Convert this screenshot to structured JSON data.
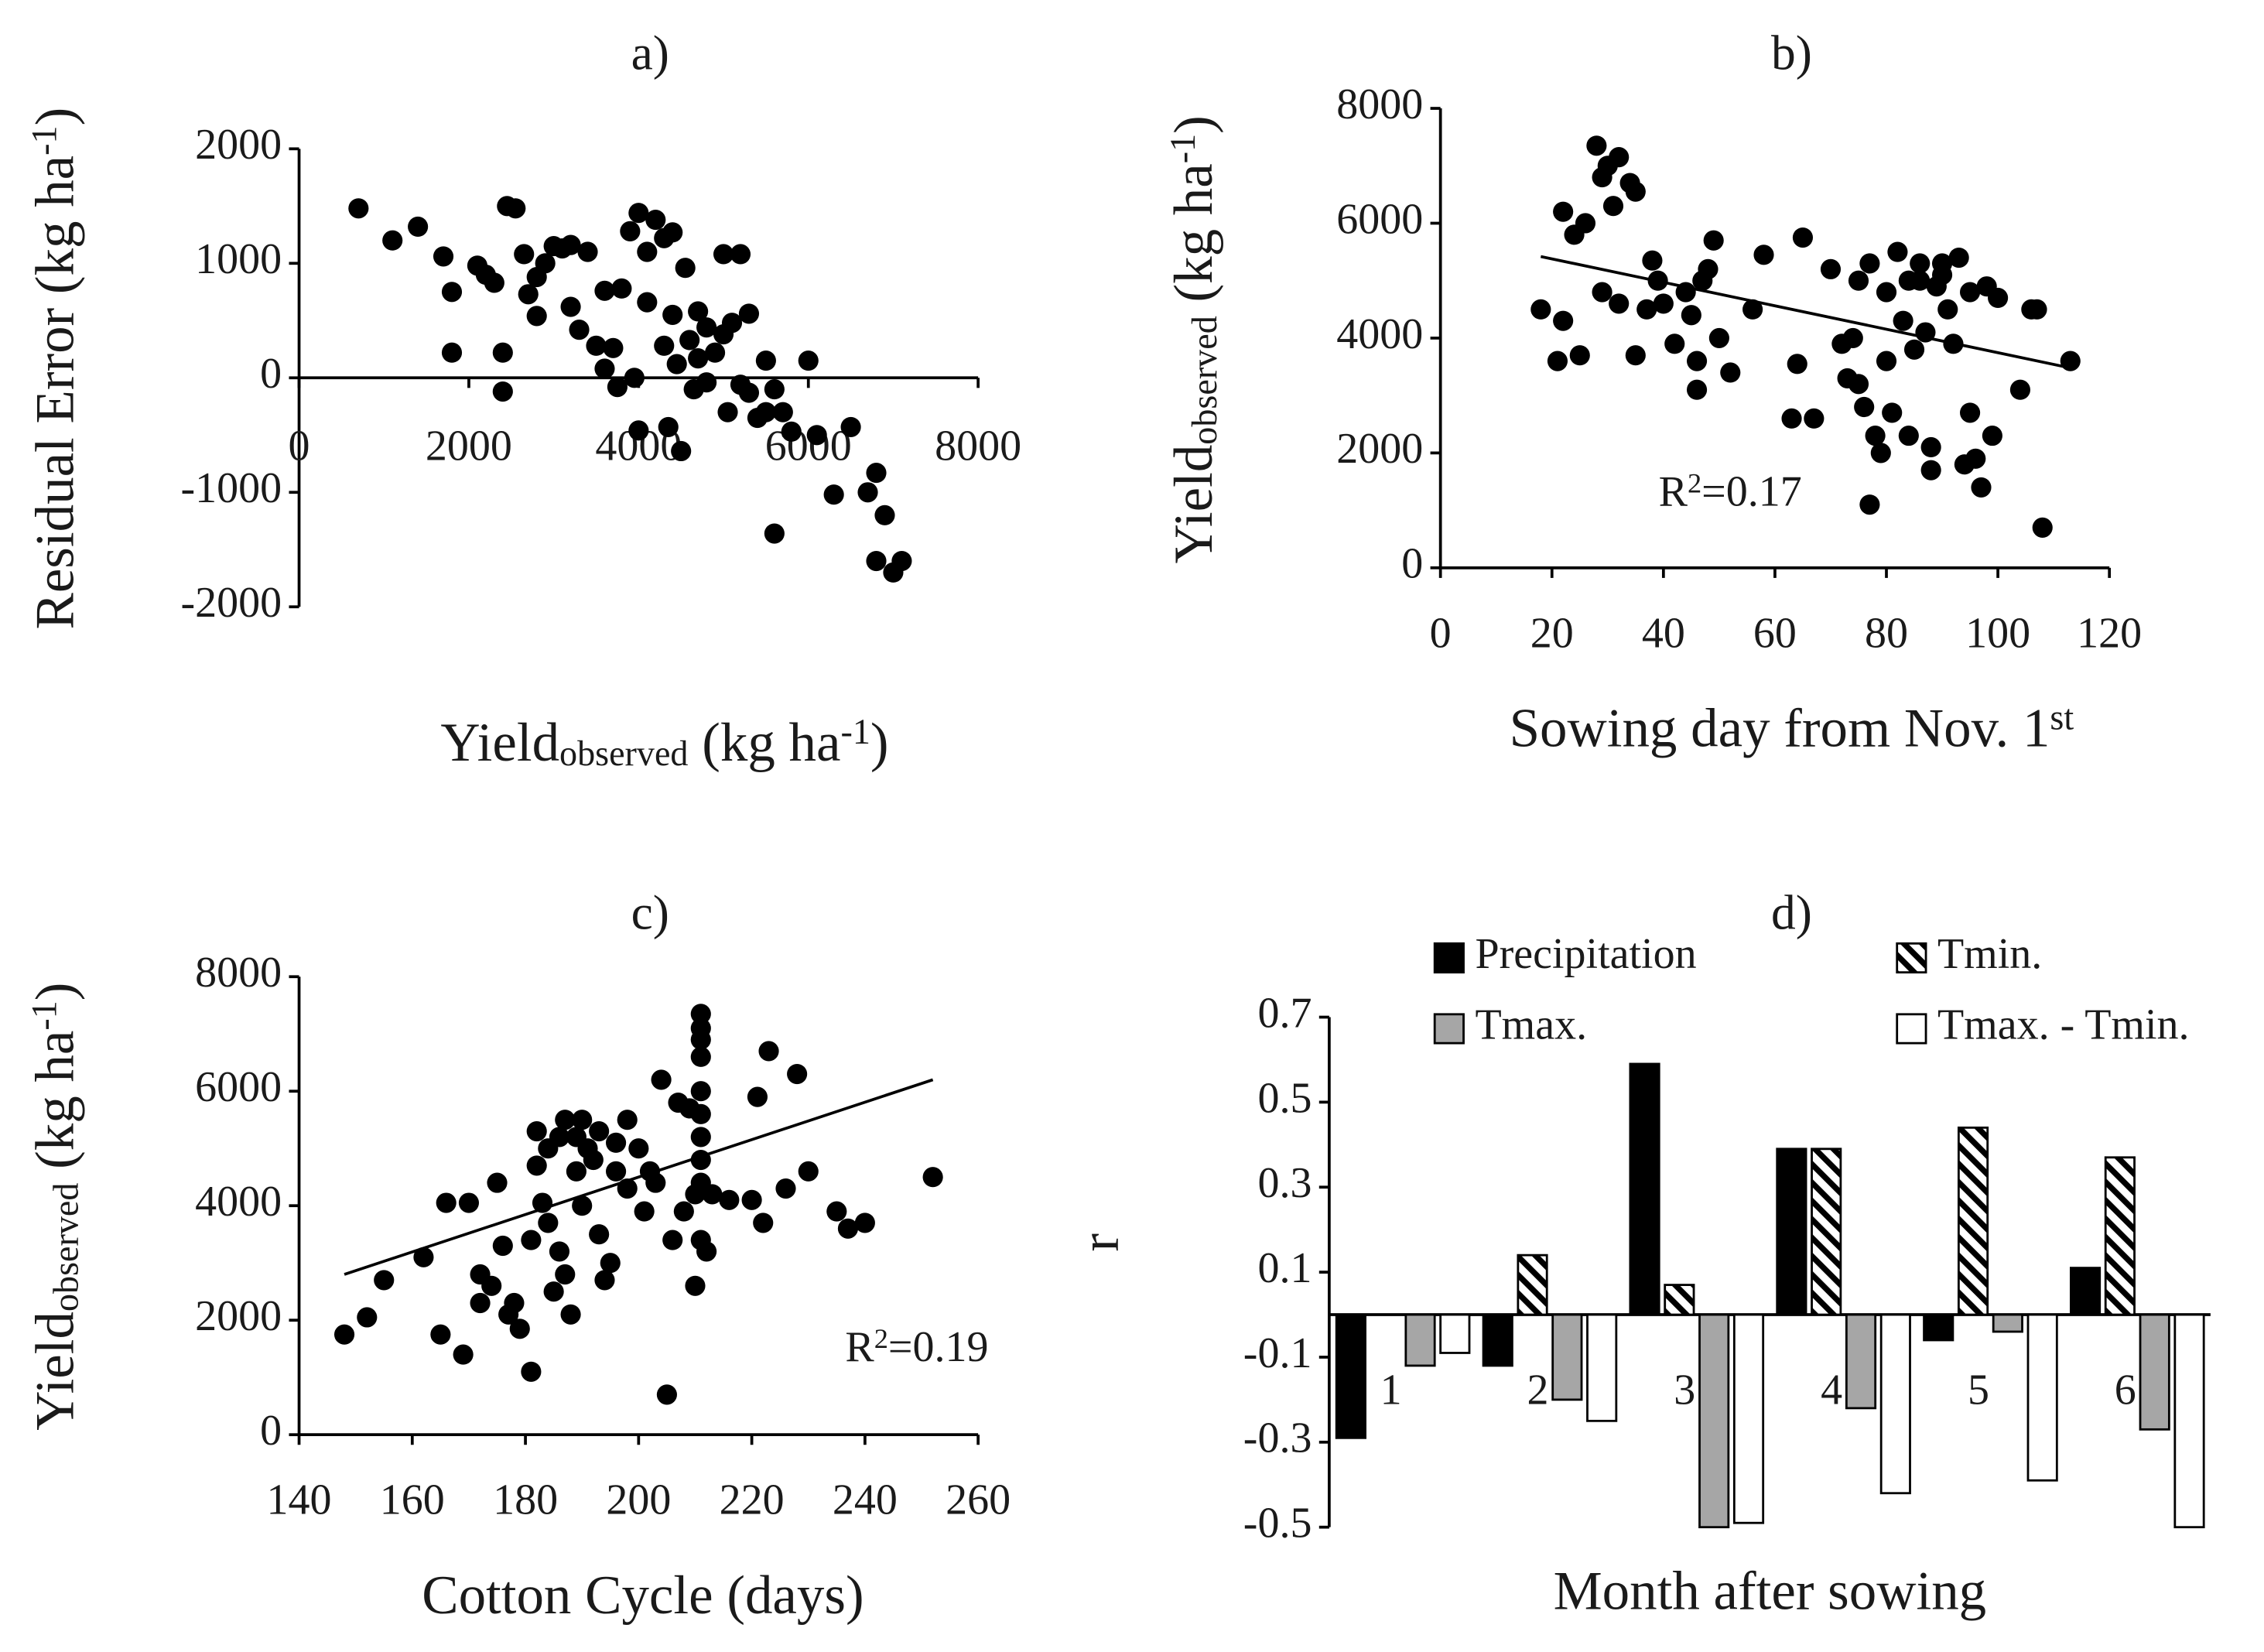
{
  "chart_data": [
    {
      "type": "scatter",
      "title": "a)",
      "ylabel": [
        {
          "text": "Residual Error (kg ha"
        },
        {
          "sup": "-1"
        },
        {
          "text": ")"
        }
      ],
      "xlabel": [
        {
          "text": "Yield"
        },
        {
          "sub": "observed"
        },
        {
          "text": " (kg ha"
        },
        {
          "sup": "-1"
        },
        {
          "text": ")"
        }
      ],
      "xlim": [
        0,
        8000
      ],
      "xticks": [
        0,
        2000,
        4000,
        6000,
        8000
      ],
      "ylim": [
        -2000,
        2000
      ],
      "yticks": [
        -2000,
        -1000,
        0,
        1000,
        2000
      ],
      "color": "#000000",
      "x": [
        700,
        1100,
        1400,
        1700,
        1800,
        1800,
        2100,
        2200,
        2300,
        2400,
        2400,
        2450,
        2550,
        2650,
        2700,
        2800,
        2800,
        2900,
        3000,
        3100,
        3200,
        3200,
        3300,
        3400,
        3500,
        3600,
        3700,
        3750,
        3800,
        3900,
        3950,
        4000,
        4000,
        4100,
        4100,
        4200,
        4300,
        4300,
        4350,
        4400,
        4450,
        4500,
        4550,
        4600,
        4650,
        4700,
        4800,
        4800,
        4900,
        5000,
        5000,
        5100,
        5200,
        5200,
        5300,
        5300,
        5400,
        5500,
        5500,
        5600,
        5600,
        5700,
        5800,
        6100,
        6000,
        6500,
        6300,
        6700,
        6800,
        6900,
        6800,
        7000,
        7100,
        4400,
        3600,
        5050,
        4700
      ],
      "values": [
        1480,
        1200,
        1320,
        1060,
        750,
        220,
        980,
        900,
        830,
        -120,
        220,
        1500,
        1480,
        1080,
        730,
        540,
        880,
        1000,
        1150,
        1130,
        1160,
        620,
        420,
        1100,
        280,
        760,
        260,
        -80,
        780,
        1280,
        0,
        1440,
        -460,
        1100,
        660,
        1380,
        1220,
        280,
        -430,
        1270,
        120,
        -640,
        960,
        330,
        -100,
        580,
        440,
        -40,
        220,
        1080,
        380,
        480,
        1080,
        -60,
        -130,
        560,
        -350,
        -300,
        150,
        -1360,
        -100,
        -300,
        -470,
        -500,
        150,
        -430,
        -1020,
        -1000,
        -830,
        -1200,
        -1600,
        -1700,
        -1600,
        550,
        80,
        -300,
        170
      ]
    },
    {
      "type": "scatter",
      "title": "b)",
      "ylabel": [
        {
          "text": "Yield"
        },
        {
          "sub": "observed"
        },
        {
          "text": " (kg ha"
        },
        {
          "sup": "-1"
        },
        {
          "text": ")"
        }
      ],
      "xlabel": [
        {
          "text": "Sowing day from Nov. 1"
        },
        {
          "sup": "st"
        }
      ],
      "xlim": [
        0,
        120
      ],
      "xticks": [
        0,
        20,
        40,
        60,
        80,
        100,
        120
      ],
      "ylim": [
        0,
        8000
      ],
      "yticks": [
        0,
        2000,
        4000,
        6000,
        8000
      ],
      "color": "#000000",
      "annotation": [
        {
          "text": "R"
        },
        {
          "sup": "2"
        },
        {
          "text": "=0.17"
        }
      ],
      "trendline": {
        "x": [
          18,
          113
        ],
        "y": [
          5420,
          3480
        ]
      },
      "x": [
        18,
        21,
        22,
        22,
        24,
        25,
        26,
        28,
        29,
        29,
        30,
        31,
        32,
        32,
        34,
        35,
        35,
        37,
        38,
        39,
        40,
        42,
        44,
        45,
        46,
        46,
        47,
        48,
        49,
        50,
        52,
        56,
        58,
        63,
        64,
        65,
        67,
        70,
        73,
        74,
        75,
        75,
        76,
        77,
        77,
        78,
        79,
        80,
        80,
        81,
        82,
        83,
        84,
        84,
        85,
        86,
        87,
        88,
        88,
        89,
        90,
        91,
        92,
        93,
        94,
        95,
        95,
        96,
        97,
        98,
        99,
        100,
        104,
        106,
        107,
        108,
        113,
        72,
        86,
        90
      ],
      "values": [
        4500,
        3600,
        6200,
        4300,
        5800,
        3700,
        6000,
        7350,
        6800,
        4800,
        7000,
        6300,
        7150,
        4600,
        6700,
        3700,
        6550,
        4500,
        5350,
        5000,
        4600,
        3900,
        4800,
        4400,
        3600,
        3100,
        5000,
        5200,
        5700,
        4000,
        3400,
        4500,
        5450,
        2600,
        3550,
        5750,
        2600,
        5200,
        3300,
        4000,
        3200,
        5000,
        2800,
        5300,
        1100,
        2300,
        2000,
        4800,
        3600,
        2700,
        5500,
        4300,
        5000,
        2300,
        3800,
        5300,
        4100,
        1700,
        2100,
        4900,
        5300,
        4500,
        3900,
        5400,
        1800,
        2700,
        4800,
        1900,
        1400,
        4900,
        2300,
        4700,
        3100,
        4500,
        4500,
        700,
        3600,
        3900,
        5000,
        5100
      ]
    },
    {
      "type": "scatter",
      "title": "c)",
      "ylabel": [
        {
          "text": "Yield"
        },
        {
          "sub": "observed"
        },
        {
          "text": " (kg ha"
        },
        {
          "sup": "-1"
        },
        {
          "text": ")"
        }
      ],
      "xlabel": [
        {
          "text": "Cotton Cycle (days)"
        }
      ],
      "xlim": [
        140,
        260
      ],
      "xticks": [
        140,
        160,
        180,
        200,
        220,
        240,
        260
      ],
      "ylim": [
        0,
        8000
      ],
      "yticks": [
        0,
        2000,
        4000,
        6000,
        8000
      ],
      "color": "#000000",
      "annotation": [
        {
          "text": "R"
        },
        {
          "sup": "2"
        },
        {
          "text": "=0.19"
        }
      ],
      "trendline": {
        "x": [
          148,
          252
        ],
        "y": [
          2800,
          6200
        ]
      },
      "x": [
        148,
        152,
        155,
        162,
        165,
        166,
        169,
        170,
        172,
        172,
        174,
        175,
        176,
        177,
        178,
        179,
        181,
        181,
        182,
        182,
        183,
        184,
        184,
        185,
        186,
        186,
        187,
        187,
        188,
        189,
        189,
        190,
        190,
        191,
        192,
        193,
        193,
        194,
        195,
        196,
        196,
        198,
        198,
        200,
        201,
        202,
        203,
        204,
        205,
        206,
        207,
        208,
        209,
        210,
        210,
        211,
        211,
        211,
        211,
        211,
        211,
        211,
        211,
        211,
        211,
        212,
        213,
        216,
        220,
        221,
        222,
        223,
        226,
        228,
        230,
        235,
        237,
        240,
        252
      ],
      "values": [
        1750,
        2050,
        2700,
        3100,
        1750,
        4050,
        1400,
        4050,
        2800,
        2300,
        2600,
        4400,
        3300,
        2100,
        2300,
        1850,
        1100,
        3400,
        5300,
        4700,
        4050,
        3700,
        5000,
        2500,
        5200,
        3200,
        2800,
        5500,
        2100,
        4600,
        5200,
        4000,
        5500,
        5000,
        4800,
        3500,
        5300,
        2700,
        3000,
        4600,
        5100,
        4300,
        5500,
        5000,
        3900,
        4600,
        4400,
        6200,
        700,
        3400,
        5800,
        3900,
        5700,
        2600,
        4200,
        7350,
        7100,
        6900,
        6600,
        6000,
        5600,
        5200,
        4800,
        4400,
        3400,
        3200,
        4200,
        4100,
        4100,
        5900,
        3700,
        6700,
        4300,
        6300,
        4600,
        3900,
        3600,
        3700,
        4500
      ]
    },
    {
      "type": "bar",
      "title": "d)",
      "ylabel": [
        {
          "text": "r"
        }
      ],
      "xlabel": [
        {
          "text": "Month after sowing"
        }
      ],
      "categories": [
        "1",
        "2",
        "3",
        "4",
        "5",
        "6"
      ],
      "ylim": [
        -0.5,
        0.7
      ],
      "yticks": [
        -0.5,
        -0.3,
        -0.1,
        0.1,
        0.3,
        0.5,
        0.7
      ],
      "series": [
        {
          "name": "Precipitation",
          "color": "#000000",
          "values": [
            -0.29,
            -0.12,
            0.59,
            0.39,
            -0.06,
            0.11
          ]
        },
        {
          "name": "Tmin.",
          "color": "#000000",
          "hatch": true,
          "values": [
            0,
            0.14,
            0.07,
            0.39,
            0.44,
            0.37
          ]
        },
        {
          "name": "Tmax.",
          "color": "#a6a6a6",
          "values": [
            -0.12,
            -0.2,
            -0.5,
            -0.22,
            -0.04,
            -0.27
          ]
        },
        {
          "name": "Tmax. - Tmin.",
          "color": "#ffffff",
          "values": [
            -0.09,
            -0.25,
            -0.49,
            -0.42,
            -0.39,
            -0.5
          ]
        }
      ]
    }
  ]
}
